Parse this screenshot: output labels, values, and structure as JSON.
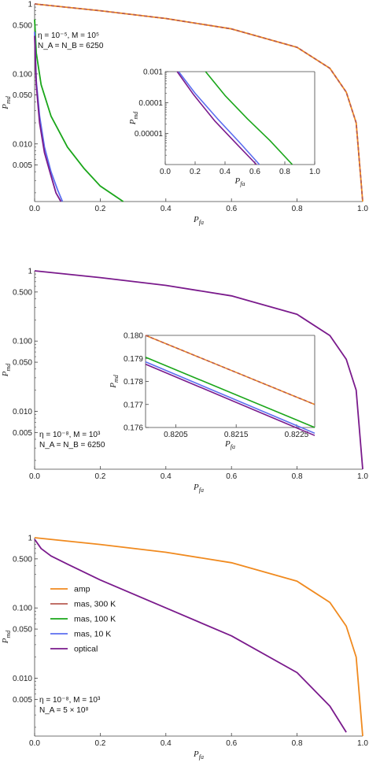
{
  "colors": {
    "amp": "#f08a1f",
    "mas300": "#b85c52",
    "mas100": "#1aa61a",
    "mas10": "#5b6ef0",
    "optical": "#7a1a8c",
    "axis": "#444444"
  },
  "legend": {
    "items": [
      {
        "key": "amp",
        "label": "amp"
      },
      {
        "key": "mas300",
        "label": "mas, 300 K"
      },
      {
        "key": "mas100",
        "label": "mas, 100 K"
      },
      {
        "key": "mas10",
        "label": "mas, 10 K"
      },
      {
        "key": "optical",
        "label": "optical"
      }
    ]
  },
  "chart_data": [
    {
      "type": "line",
      "panel": "top",
      "xlabel": "P_fa",
      "ylabel": "P_md",
      "xlim": [
        0,
        1
      ],
      "ylim": [
        0.0015,
        1
      ],
      "yscale": "log",
      "xticks": [
        "0.0",
        "0.2",
        "0.4",
        "0.6",
        "0.8",
        "1.0"
      ],
      "yticks": [
        "1",
        "0.500",
        "0.100",
        "0.050",
        "0.010",
        "0.005"
      ],
      "annotations": [
        "η = 10⁻⁵, M = 10⁵",
        "N_A = N_B = 6250"
      ],
      "series": [
        {
          "name": "amp",
          "x": [
            0,
            0.2,
            0.4,
            0.6,
            0.8,
            0.9,
            0.95,
            0.98,
            1.0
          ],
          "y": [
            1,
            0.8,
            0.62,
            0.44,
            0.24,
            0.12,
            0.055,
            0.02,
            0.0015
          ]
        },
        {
          "name": "mas, 300 K",
          "x": [
            0,
            0.2,
            0.4,
            0.6,
            0.8,
            0.9,
            0.95,
            0.98,
            1.0
          ],
          "y": [
            1,
            0.8,
            0.62,
            0.44,
            0.24,
            0.12,
            0.055,
            0.02,
            0.0015
          ]
        },
        {
          "name": "mas, 100 K",
          "x": [
            0,
            0.005,
            0.02,
            0.05,
            0.1,
            0.15,
            0.2,
            0.27
          ],
          "y": [
            0.6,
            0.2,
            0.07,
            0.025,
            0.009,
            0.0045,
            0.0025,
            0.0015
          ]
        },
        {
          "name": "mas, 10 K",
          "x": [
            0,
            0.005,
            0.015,
            0.03,
            0.05,
            0.07,
            0.085
          ],
          "y": [
            0.4,
            0.08,
            0.025,
            0.009,
            0.004,
            0.0022,
            0.0015
          ]
        },
        {
          "name": "optical",
          "x": [
            0,
            0.005,
            0.015,
            0.03,
            0.05,
            0.065,
            0.08
          ],
          "y": [
            0.35,
            0.07,
            0.02,
            0.0075,
            0.0035,
            0.002,
            0.0015
          ]
        }
      ],
      "inset": {
        "xlim": [
          0,
          1
        ],
        "ylim": [
          1e-06,
          0.001
        ],
        "yscale": "log",
        "xlabel": "P_fa",
        "ylabel": "P_md",
        "xticks": [
          "0.0",
          "0.2",
          "0.4",
          "0.6",
          "0.8",
          "1.0"
        ],
        "yticks": [
          "0.001",
          "0.0001",
          "0.00001"
        ],
        "series": [
          {
            "name": "mas, 100 K",
            "x": [
              0.27,
              0.4,
              0.55,
              0.7,
              0.85
            ],
            "y": [
              0.001,
              0.00017,
              3e-05,
              6e-06,
              1e-06
            ]
          },
          {
            "name": "mas, 10 K",
            "x": [
              0.09,
              0.2,
              0.35,
              0.5,
              0.63
            ],
            "y": [
              0.001,
              0.0002,
              3e-05,
              5e-06,
              1e-06
            ]
          },
          {
            "name": "optical",
            "x": [
              0.08,
              0.19,
              0.33,
              0.48,
              0.61
            ],
            "y": [
              0.001,
              0.00018,
              2.6e-05,
              4.5e-06,
              1e-06
            ]
          }
        ]
      }
    },
    {
      "type": "line",
      "panel": "middle",
      "xlabel": "P_fa",
      "ylabel": "P_md",
      "xlim": [
        0,
        1
      ],
      "ylim": [
        0.0015,
        1
      ],
      "yscale": "log",
      "xticks": [
        "0.0",
        "0.2",
        "0.4",
        "0.6",
        "0.8",
        "1.0"
      ],
      "yticks": [
        "1",
        "0.500",
        "0.100",
        "0.050",
        "0.010",
        "0.005"
      ],
      "annotations": [
        "η = 10⁻⁸, M = 10³",
        "N_A = N_B = 6250"
      ],
      "series": [
        {
          "name": "optical",
          "x": [
            0,
            0.2,
            0.4,
            0.6,
            0.8,
            0.9,
            0.95,
            0.98,
            1.0
          ],
          "y": [
            1,
            0.8,
            0.62,
            0.44,
            0.24,
            0.12,
            0.055,
            0.02,
            0.0015
          ]
        }
      ],
      "inset": {
        "xlim": [
          0.82,
          0.8228
        ],
        "ylim": [
          0.176,
          0.18
        ],
        "xlabel": "P_fa",
        "ylabel": "P_md",
        "xticks": [
          "0.8205",
          "0.8215",
          "0.8225"
        ],
        "yticks": [
          "0.180",
          "0.179",
          "0.178",
          "0.177",
          "0.176"
        ],
        "series": [
          {
            "name": "amp",
            "x": [
              0.82,
              0.8228
            ],
            "y": [
              0.18,
              0.177
            ]
          },
          {
            "name": "mas, 300 K",
            "x": [
              0.82,
              0.8228
            ],
            "y": [
              0.18,
              0.177
            ]
          },
          {
            "name": "mas, 100 K",
            "x": [
              0.82,
              0.8228
            ],
            "y": [
              0.17905,
              0.176
            ]
          },
          {
            "name": "mas, 10 K",
            "x": [
              0.82,
              0.8228
            ],
            "y": [
              0.17885,
              0.17575
            ]
          },
          {
            "name": "optical",
            "x": [
              0.82,
              0.8228
            ],
            "y": [
              0.17875,
              0.17565
            ]
          }
        ]
      }
    },
    {
      "type": "line",
      "panel": "bottom",
      "xlabel": "P_fa",
      "ylabel": "P_md",
      "xlim": [
        0,
        1
      ],
      "ylim": [
        0.0015,
        1
      ],
      "yscale": "log",
      "xticks": [
        "0.0",
        "0.2",
        "0.4",
        "0.6",
        "0.8",
        "1.0"
      ],
      "yticks": [
        "1",
        "0.500",
        "0.100",
        "0.050",
        "0.010",
        "0.005"
      ],
      "annotations": [
        "η = 10⁻⁸, M = 10³",
        "N_A = 5 × 10⁸"
      ],
      "legend_position": "left",
      "series": [
        {
          "name": "amp",
          "x": [
            0,
            0.2,
            0.4,
            0.6,
            0.8,
            0.9,
            0.95,
            0.98,
            1.0
          ],
          "y": [
            1,
            0.8,
            0.62,
            0.44,
            0.24,
            0.12,
            0.055,
            0.02,
            0.0015
          ]
        },
        {
          "name": "optical",
          "x": [
            0,
            0.02,
            0.05,
            0.1,
            0.2,
            0.4,
            0.6,
            0.8,
            0.9,
            0.95
          ],
          "y": [
            0.95,
            0.7,
            0.55,
            0.42,
            0.25,
            0.1,
            0.04,
            0.012,
            0.004,
            0.0017
          ]
        }
      ]
    }
  ]
}
